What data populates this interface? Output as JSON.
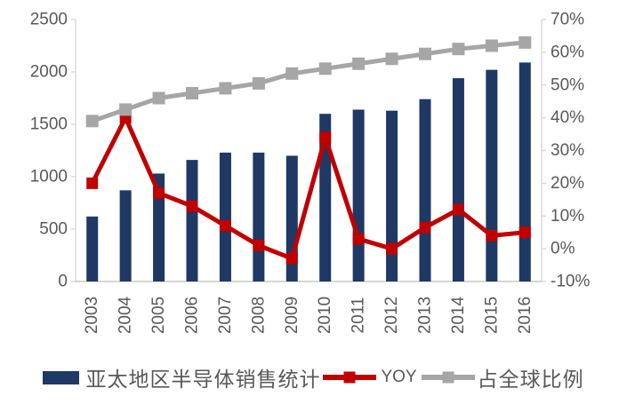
{
  "chart_data": {
    "type": "combo",
    "title": "",
    "categories": [
      "2003",
      "2004",
      "2005",
      "2006",
      "2007",
      "2008",
      "2009",
      "2010",
      "2011",
      "2012",
      "2013",
      "2014",
      "2015",
      "2016"
    ],
    "series": [
      {
        "name": "亚太地区半导体销售统计",
        "type": "bar",
        "axis": "left",
        "color": "#1F3864",
        "values": [
          620,
          870,
          1030,
          1160,
          1230,
          1230,
          1200,
          1600,
          1640,
          1630,
          1740,
          1940,
          2020,
          2090
        ]
      },
      {
        "name": "YOY",
        "type": "line",
        "axis": "right",
        "color": "#C00000",
        "marker": "square",
        "values": [
          20,
          40,
          17,
          13,
          7,
          1,
          -3,
          34,
          3,
          0,
          6.5,
          12,
          4,
          5
        ]
      },
      {
        "name": "占全球比例",
        "type": "line",
        "axis": "right",
        "color": "#A6A6A6",
        "marker": "square",
        "values": [
          39,
          42.5,
          46,
          47.5,
          49,
          50.5,
          53.5,
          55,
          56.5,
          58,
          59.5,
          61,
          62,
          63
        ]
      }
    ],
    "left_axis": {
      "min": 0,
      "max": 2500,
      "step": 500,
      "tick_labels": [
        "0",
        "500",
        "1000",
        "1500",
        "2000",
        "2500"
      ]
    },
    "right_axis": {
      "min": -10,
      "max": 70,
      "step": 10,
      "tick_labels": [
        "-10%",
        "0%",
        "10%",
        "20%",
        "30%",
        "40%",
        "50%",
        "60%",
        "70%"
      ]
    },
    "grid": false,
    "legend_position": "bottom",
    "colors": {
      "axis_line": "#D9D9D9",
      "tick_text": "#595959",
      "background": "#FFFFFF"
    }
  },
  "legend": {
    "bar_label": "亚太地区半导体销售统计",
    "yoy_label": "YOY",
    "share_label": "占全球比例"
  }
}
